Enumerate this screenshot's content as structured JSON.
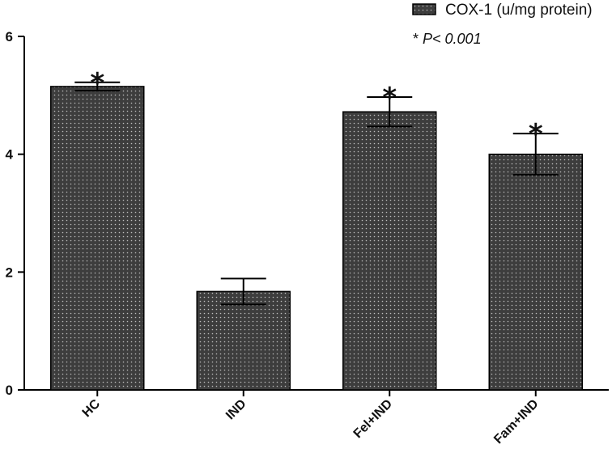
{
  "chart_data": {
    "type": "bar",
    "title": "",
    "xlabel": "",
    "ylabel": "",
    "ylim": [
      0,
      6
    ],
    "yticks": [
      0,
      2,
      4,
      6
    ],
    "categories": [
      "HC",
      "IND",
      "Fel+IND",
      "Fam+IND"
    ],
    "series": [
      {
        "name": "COX-1 (u/mg protein)",
        "values": [
          5.15,
          1.67,
          4.72,
          4.0
        ],
        "errors": [
          0.07,
          0.22,
          0.25,
          0.35
        ],
        "significant": [
          true,
          false,
          true,
          true
        ]
      }
    ],
    "significance_marker": "*",
    "annotation": {
      "prefix": "* ",
      "text": "P< 0.001"
    },
    "colors": {
      "bar_fill": "#3d3d3d",
      "bar_dots": "#bdbdbd",
      "axis": "#000000"
    },
    "legend": {
      "position": "top-right"
    }
  }
}
